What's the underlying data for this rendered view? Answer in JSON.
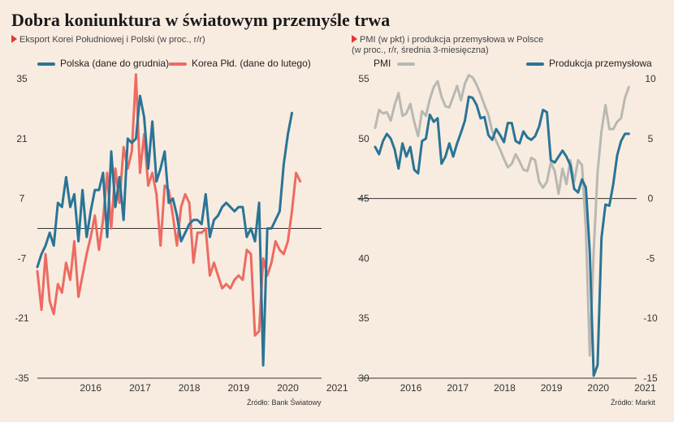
{
  "title": "Dobra koniunktura w światowym przemyśle trwa",
  "charts": [
    {
      "subtitle_lines": [
        "Eksport Korei Południowej i Polski (w proc., r/r)"
      ],
      "source": "Źródło: Bank Światowy"
    },
    {
      "subtitle_lines": [
        "PMI (w pkt) i produkcja przemysłowa w Polsce",
        "(w proc., r/r, średnia 3-miesięczna)"
      ],
      "source": "Źródło: Markit"
    }
  ],
  "chart_data": [
    {
      "type": "line",
      "x_start": "2015-06",
      "x_end": "2021-04",
      "x_ticks": [
        "2016",
        "2017",
        "2018",
        "2019",
        "2020",
        "2021"
      ],
      "y_ticks": [
        "35",
        "21",
        "7",
        "-7",
        "-21",
        "-35"
      ],
      "ylim": [
        -35,
        35
      ],
      "grid": false,
      "reference_line": 0,
      "legend": "top",
      "series": [
        {
          "name": "Polska (dane do grudnia)",
          "color": "#2a7496",
          "start": "2015-06",
          "values": [
            -9,
            -6,
            -4,
            -1,
            -4,
            6,
            5,
            12,
            5,
            8,
            -3,
            9,
            -2,
            4,
            9,
            9,
            13,
            -2,
            18,
            5,
            12,
            2,
            21,
            20,
            21,
            31,
            26,
            14,
            25,
            11,
            14,
            18,
            6,
            7,
            3,
            -3,
            -1,
            1,
            2,
            2,
            1,
            8,
            -2,
            2,
            3,
            5,
            6,
            5,
            4,
            5,
            5,
            -2,
            0,
            -3,
            6,
            -32,
            0,
            0,
            2,
            4,
            15,
            22,
            27
          ]
        },
        {
          "name": "Korea Płd. (dane do lutego)",
          "color": "#ec6b63",
          "start": "2015-06",
          "values": [
            -10,
            -19,
            -6,
            -17,
            -20,
            -13,
            -15,
            -8,
            -12,
            -3,
            -16,
            -11,
            -6,
            -2,
            3,
            -5,
            2,
            13,
            0,
            14,
            6,
            19,
            14,
            18,
            36,
            13,
            22,
            10,
            13,
            8,
            -4,
            10,
            9,
            3,
            -4,
            5,
            8,
            6,
            -8,
            -1,
            -1,
            0,
            -11,
            -8,
            -11,
            -14,
            -13,
            -14,
            -12,
            -11,
            -12,
            -5,
            -6,
            -25,
            -24,
            -7,
            -11,
            -8,
            -3,
            -5,
            -6,
            -3,
            4,
            13,
            11
          ]
        }
      ]
    },
    {
      "type": "line",
      "x_start": "2015-09",
      "x_end": "2021-04",
      "x_ticks": [
        "2016",
        "2017",
        "2018",
        "2019",
        "2020",
        "2021"
      ],
      "y_ticks_left": [
        "55",
        "50",
        "45",
        "40",
        "35",
        "30"
      ],
      "y_ticks_right": [
        "10",
        "5",
        "0",
        "-5",
        "-10",
        "-15"
      ],
      "ylim_left": [
        30,
        55
      ],
      "ylim_right": [
        -15,
        10
      ],
      "grid": false,
      "reference_line_left": 45,
      "legend": "top",
      "series": [
        {
          "name": "PMI",
          "axis": "left",
          "color": "#b8b8b3",
          "start": "2015-09",
          "values": [
            50.9,
            52.4,
            52.1,
            52.2,
            51.5,
            52.8,
            53.8,
            51.9,
            52.1,
            52.9,
            51.4,
            50.2,
            52.3,
            51.9,
            53.3,
            54.3,
            54.8,
            53.5,
            52.7,
            52.6,
            53.5,
            54.4,
            53.2,
            54.6,
            55.3,
            55.1,
            54.5,
            53.7,
            52.8,
            52.0,
            50.6,
            49.8,
            49.1,
            48.3,
            47.6,
            47.9,
            48.7,
            48.1,
            47.4,
            47.3,
            48.4,
            48.2,
            46.4,
            45.9,
            46.4,
            48.0,
            47.3,
            45.4,
            47.5,
            46.2,
            48.2,
            46.4,
            48.2,
            47.8,
            42.4,
            31.9,
            40.6,
            47.2,
            50.6,
            52.8,
            50.8,
            50.8,
            51.4,
            51.7,
            53.4,
            54.3
          ]
        },
        {
          "name": "Produkcja przemysłowa",
          "axis": "right",
          "color": "#2a7496",
          "start": "2015-09",
          "values": [
            4.3,
            3.7,
            4.8,
            5.4,
            5.0,
            4.1,
            2.5,
            4.6,
            3.5,
            4.3,
            2.4,
            2.1,
            4.8,
            5.0,
            7.0,
            6.4,
            6.7,
            2.9,
            3.5,
            4.6,
            3.5,
            4.6,
            5.5,
            6.5,
            8.5,
            8.4,
            7.8,
            6.7,
            6.8,
            5.3,
            4.9,
            5.8,
            5.3,
            4.7,
            6.3,
            6.3,
            4.8,
            4.6,
            5.6,
            5.1,
            4.9,
            5.2,
            6.0,
            7.4,
            7.2,
            3.2,
            3.0,
            3.5,
            4.0,
            3.5,
            2.8,
            0.8,
            0.5,
            1.6,
            0.9,
            -4.5,
            -14.8,
            -13.9,
            -3.3,
            -0.5,
            -0.6,
            1.2,
            3.6,
            4.8,
            5.4,
            5.4
          ]
        }
      ]
    }
  ]
}
